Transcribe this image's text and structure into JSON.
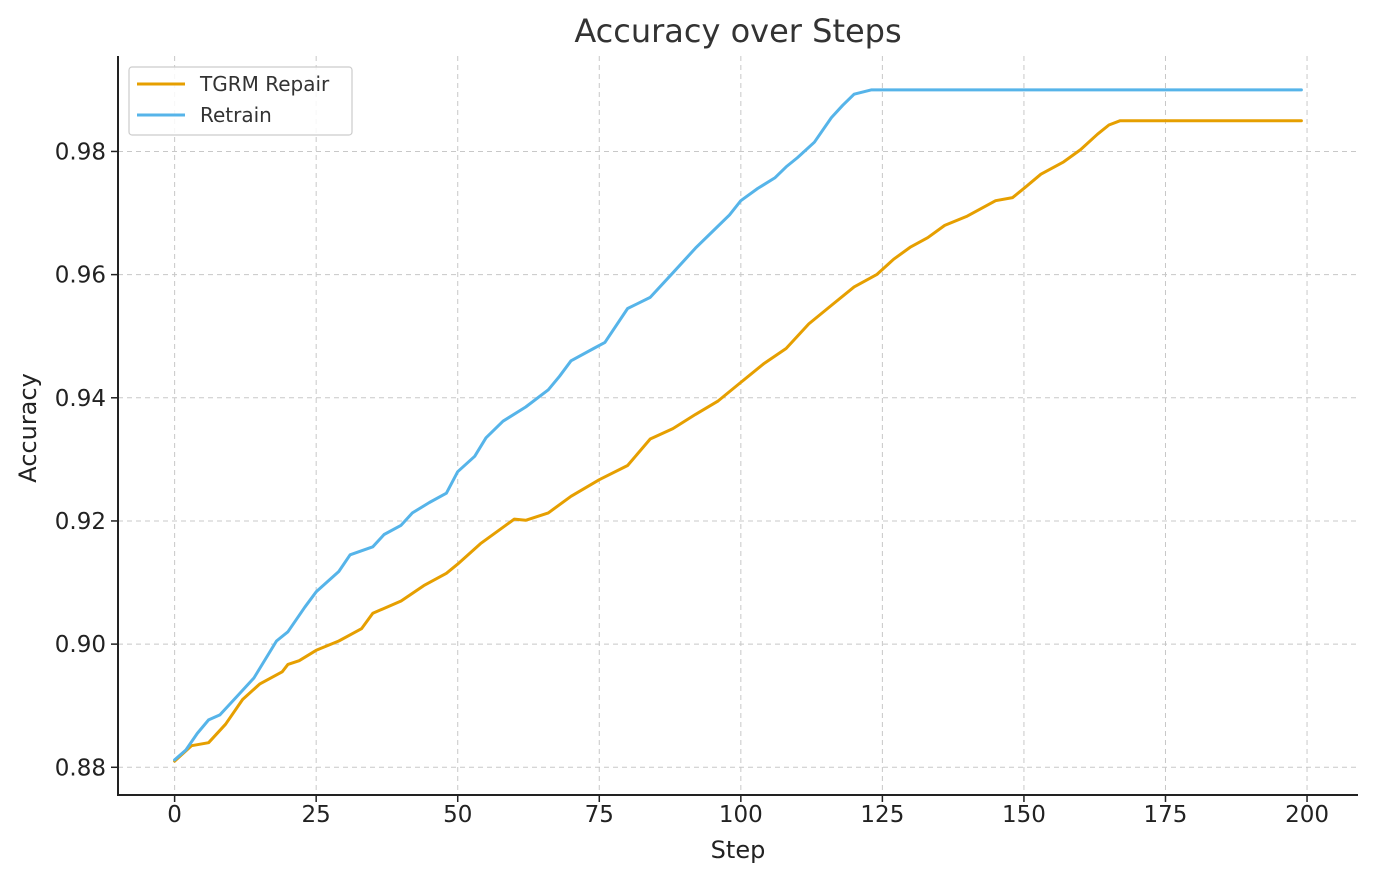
{
  "chart_data": {
    "type": "line",
    "title": "Accuracy over Steps",
    "xlabel": "Step",
    "ylabel": "Accuracy",
    "xlim": [
      -10,
      209
    ],
    "ylim": [
      0.8755,
      0.9955
    ],
    "xticks": [
      0,
      25,
      50,
      75,
      100,
      125,
      150,
      175,
      200
    ],
    "xtick_labels": [
      "0",
      "25",
      "50",
      "75",
      "100",
      "125",
      "150",
      "175",
      "200"
    ],
    "yticks": [
      0.88,
      0.9,
      0.92,
      0.94,
      0.96,
      0.98
    ],
    "ytick_labels": [
      "0.88",
      "0.90",
      "0.92",
      "0.94",
      "0.96",
      "0.98"
    ],
    "grid": true,
    "legend_position": "top-left",
    "series": [
      {
        "name": "TGRM Repair",
        "color": "#E69F00",
        "points": [
          [
            0,
            0.881
          ],
          [
            3,
            0.8835
          ],
          [
            6,
            0.884
          ],
          [
            9,
            0.887
          ],
          [
            12,
            0.891
          ],
          [
            15,
            0.8935
          ],
          [
            19,
            0.8955
          ],
          [
            20,
            0.8967
          ],
          [
            22,
            0.8973
          ],
          [
            25,
            0.899
          ],
          [
            29,
            0.9005
          ],
          [
            33,
            0.9025
          ],
          [
            35,
            0.905
          ],
          [
            40,
            0.907
          ],
          [
            44,
            0.9095
          ],
          [
            48,
            0.9115
          ],
          [
            50,
            0.913
          ],
          [
            54,
            0.9163
          ],
          [
            60,
            0.9203
          ],
          [
            62,
            0.9201
          ],
          [
            66,
            0.9213
          ],
          [
            70,
            0.924
          ],
          [
            75,
            0.9267
          ],
          [
            80,
            0.929
          ],
          [
            84,
            0.9333
          ],
          [
            88,
            0.935
          ],
          [
            92,
            0.9373
          ],
          [
            96,
            0.9395
          ],
          [
            100,
            0.9425
          ],
          [
            104,
            0.9455
          ],
          [
            108,
            0.948
          ],
          [
            112,
            0.952
          ],
          [
            116,
            0.955
          ],
          [
            120,
            0.958
          ],
          [
            124,
            0.96
          ],
          [
            127,
            0.9625
          ],
          [
            130,
            0.9645
          ],
          [
            133,
            0.966
          ],
          [
            136,
            0.968
          ],
          [
            140,
            0.9695
          ],
          [
            145,
            0.972
          ],
          [
            148,
            0.9725
          ],
          [
            150,
            0.974
          ],
          [
            153,
            0.9763
          ],
          [
            157,
            0.9783
          ],
          [
            160,
            0.9803
          ],
          [
            163,
            0.9828
          ],
          [
            165,
            0.9843
          ],
          [
            167,
            0.985
          ],
          [
            199,
            0.985
          ]
        ]
      },
      {
        "name": "Retrain",
        "color": "#56B4E9",
        "points": [
          [
            0,
            0.8812
          ],
          [
            2,
            0.8828
          ],
          [
            4,
            0.8855
          ],
          [
            6,
            0.8877
          ],
          [
            8,
            0.8885
          ],
          [
            11,
            0.8915
          ],
          [
            14,
            0.8945
          ],
          [
            18,
            0.9005
          ],
          [
            20,
            0.902
          ],
          [
            23,
            0.906
          ],
          [
            25,
            0.9085
          ],
          [
            29,
            0.9118
          ],
          [
            31,
            0.9145
          ],
          [
            35,
            0.9158
          ],
          [
            37,
            0.9178
          ],
          [
            40,
            0.9193
          ],
          [
            42,
            0.9213
          ],
          [
            45,
            0.923
          ],
          [
            48,
            0.9245
          ],
          [
            50,
            0.928
          ],
          [
            53,
            0.9305
          ],
          [
            55,
            0.9335
          ],
          [
            58,
            0.9362
          ],
          [
            62,
            0.9385
          ],
          [
            66,
            0.9413
          ],
          [
            68,
            0.9435
          ],
          [
            70,
            0.946
          ],
          [
            74,
            0.948
          ],
          [
            76,
            0.949
          ],
          [
            80,
            0.9545
          ],
          [
            84,
            0.9563
          ],
          [
            88,
            0.9603
          ],
          [
            92,
            0.9643
          ],
          [
            95,
            0.967
          ],
          [
            98,
            0.9697
          ],
          [
            100,
            0.972
          ],
          [
            103,
            0.974
          ],
          [
            106,
            0.9757
          ],
          [
            108,
            0.9775
          ],
          [
            110,
            0.979
          ],
          [
            113,
            0.9815
          ],
          [
            116,
            0.9855
          ],
          [
            118,
            0.9875
          ],
          [
            120,
            0.9893
          ],
          [
            123,
            0.99
          ],
          [
            199,
            0.99
          ]
        ]
      }
    ]
  }
}
